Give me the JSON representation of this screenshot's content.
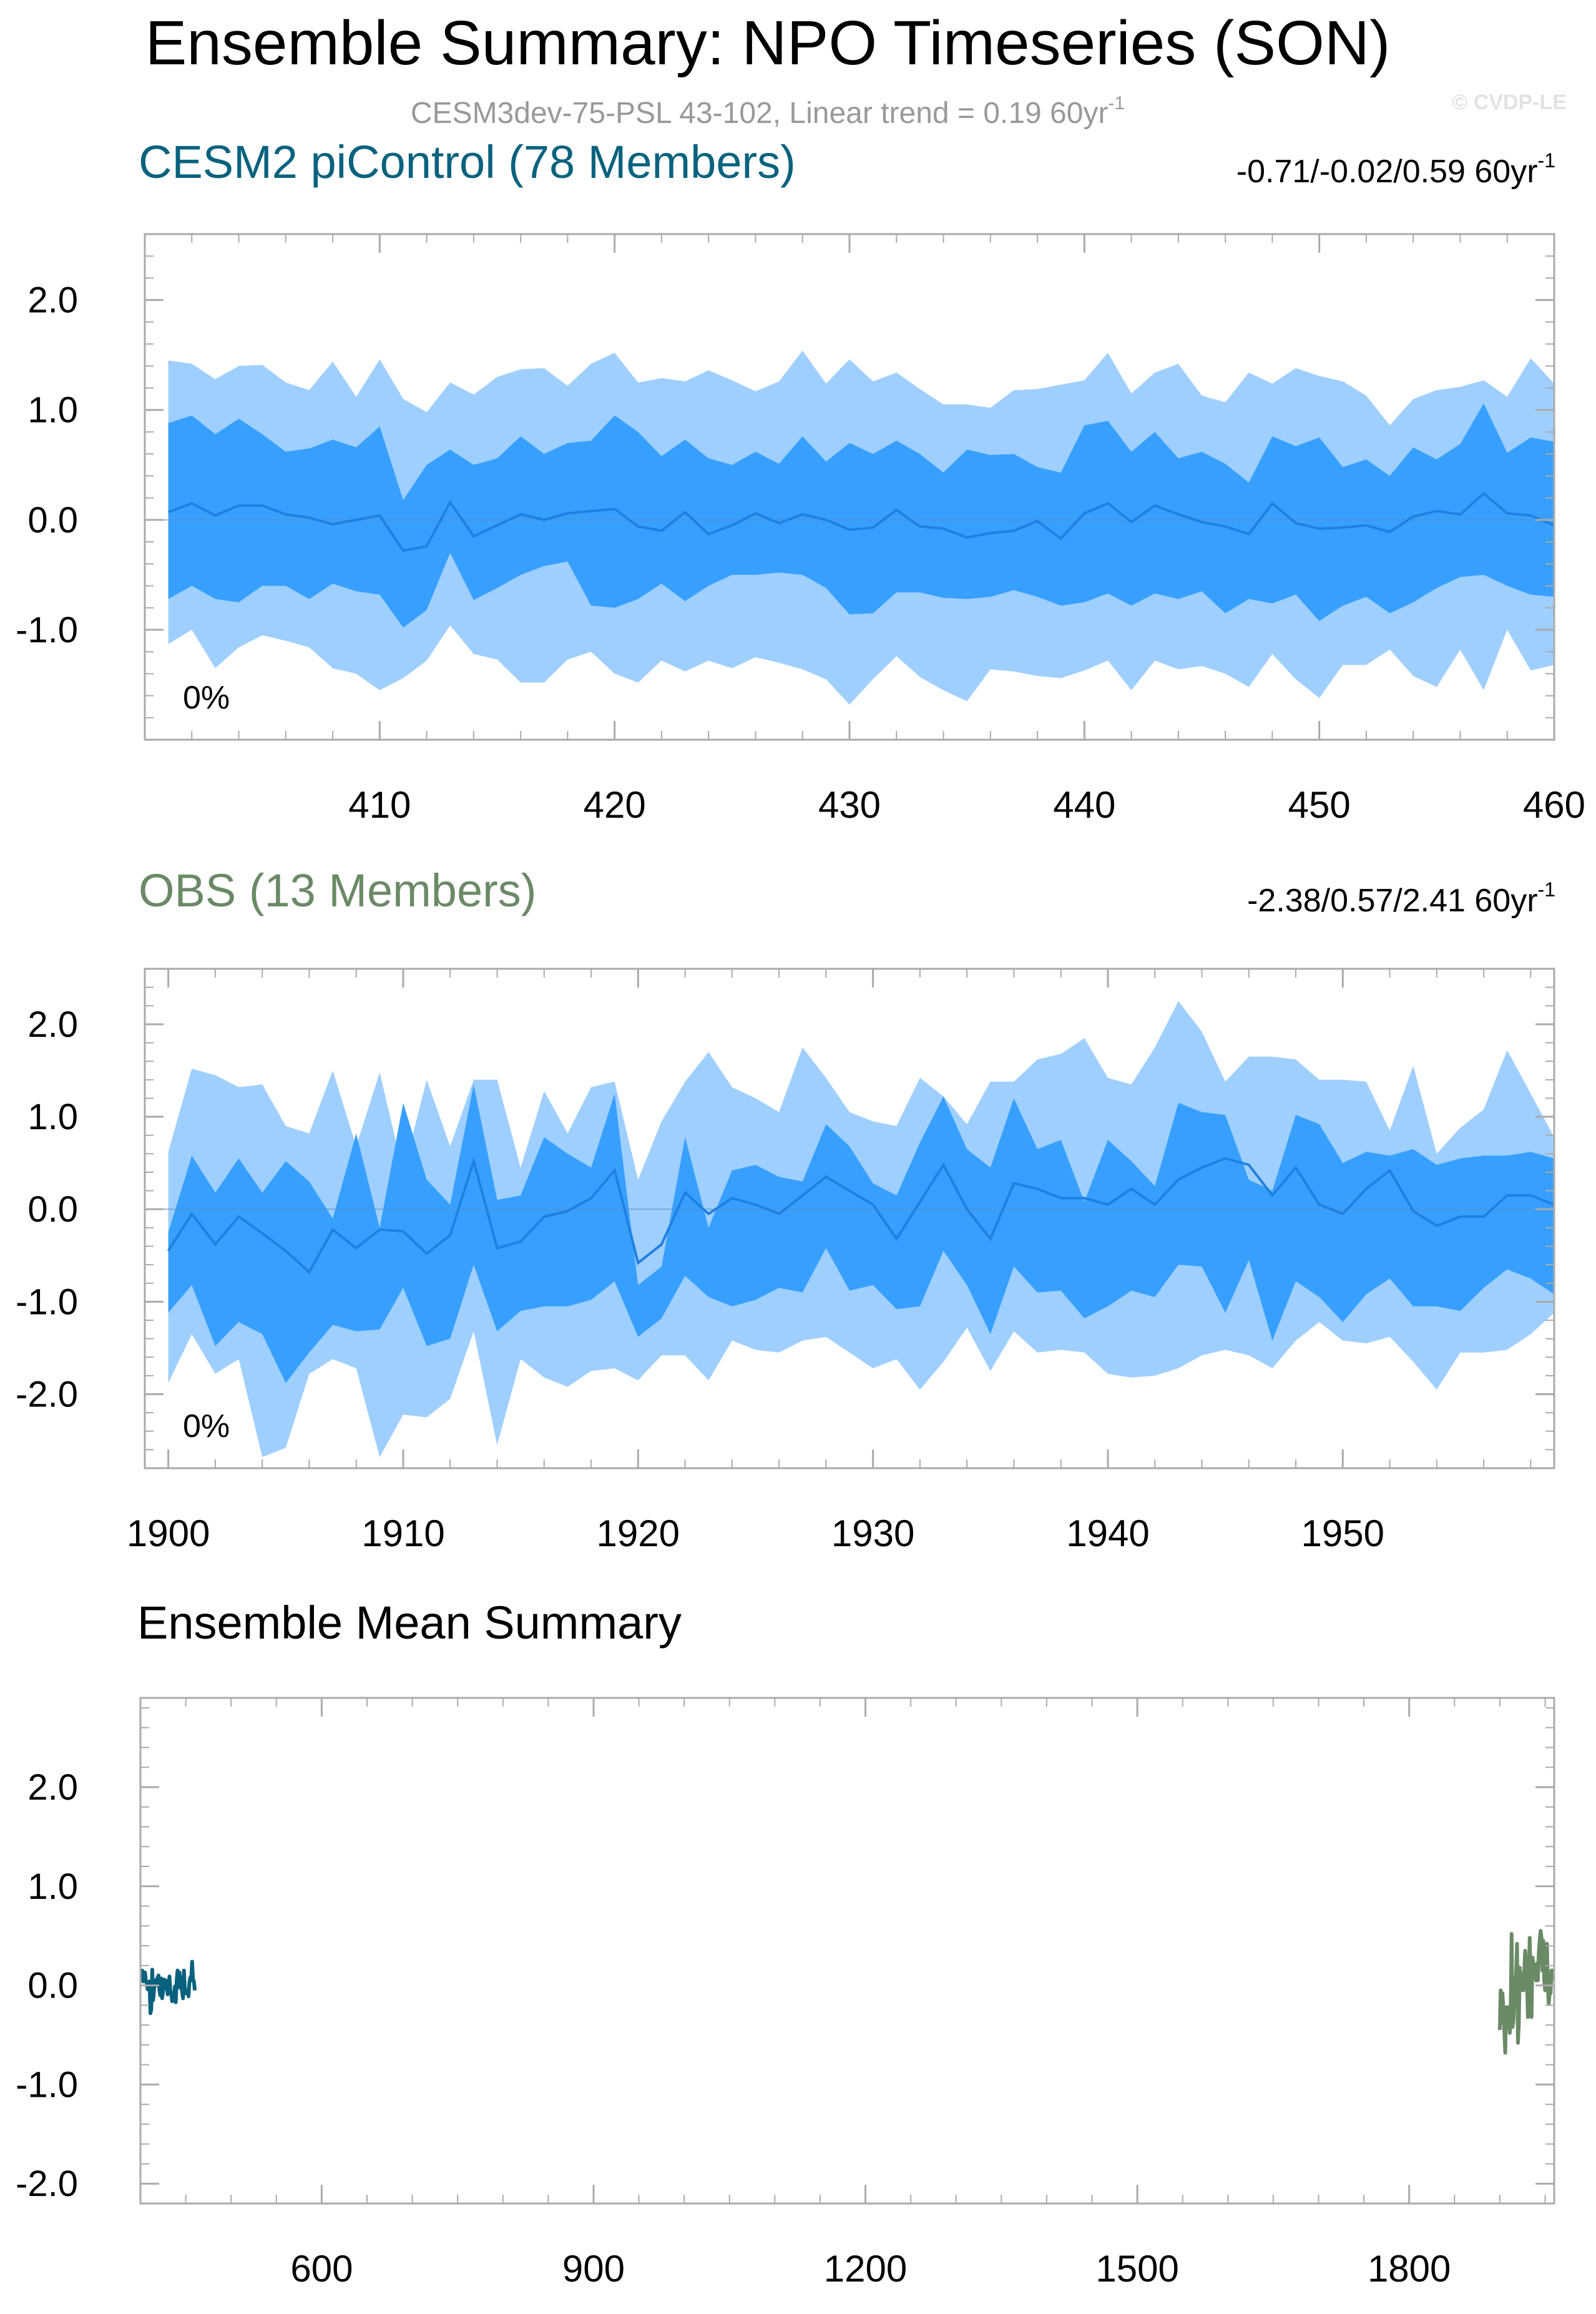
{
  "figure": {
    "title": "Ensemble Summary: NPO Timeseries (SON)",
    "subtitle": "CESM3dev-75-PSL 43-102, Linear trend = 0.19 60yr",
    "subtitle_sup": "-1",
    "copyright": "© CVDP-LE"
  },
  "colors": {
    "band_outer": "#9fcfff",
    "band_inner": "#37a0ff",
    "mean_line": "#1f80e0",
    "cesm": "#08627e",
    "obs": "#6a8a66",
    "frame": "#aaaaaa"
  },
  "chart_data": [
    {
      "type": "area",
      "name": "CESM2 piControl",
      "title": "CESM2 piControl (78 Members)",
      "trend_label": "-0.71/-0.02/0.59 60yr",
      "trend_sup": "-1",
      "percent_label": "0%",
      "x": [
        401,
        402,
        403,
        404,
        405,
        406,
        407,
        408,
        409,
        410,
        411,
        412,
        413,
        414,
        415,
        416,
        417,
        418,
        419,
        420,
        421,
        422,
        423,
        424,
        425,
        426,
        427,
        428,
        429,
        430,
        431,
        432,
        433,
        434,
        435,
        436,
        437,
        438,
        439,
        440,
        441,
        442,
        443,
        444,
        445,
        446,
        447,
        448,
        449,
        450,
        451,
        452,
        453,
        454,
        455,
        456,
        457,
        458,
        459,
        460
      ],
      "p97": [
        1.45,
        1.42,
        1.28,
        1.4,
        1.41,
        1.25,
        1.18,
        1.44,
        1.12,
        1.46,
        1.1,
        0.98,
        1.25,
        1.14,
        1.3,
        1.37,
        1.38,
        1.22,
        1.42,
        1.52,
        1.25,
        1.29,
        1.26,
        1.36,
        1.27,
        1.17,
        1.26,
        1.54,
        1.24,
        1.46,
        1.26,
        1.34,
        1.19,
        1.05,
        1.05,
        1.02,
        1.18,
        1.19,
        1.23,
        1.27,
        1.52,
        1.15,
        1.34,
        1.42,
        1.13,
        1.07,
        1.34,
        1.24,
        1.38,
        1.31,
        1.26,
        1.13,
        0.86,
        1.1,
        1.18,
        1.21,
        1.27,
        1.12,
        1.47,
        1.24
      ],
      "p84": [
        0.88,
        0.95,
        0.78,
        0.92,
        0.78,
        0.62,
        0.65,
        0.73,
        0.66,
        0.85,
        0.18,
        0.5,
        0.64,
        0.5,
        0.56,
        0.76,
        0.6,
        0.7,
        0.72,
        0.95,
        0.8,
        0.58,
        0.73,
        0.56,
        0.5,
        0.62,
        0.51,
        0.76,
        0.53,
        0.7,
        0.6,
        0.72,
        0.6,
        0.43,
        0.64,
        0.59,
        0.6,
        0.48,
        0.43,
        0.86,
        0.9,
        0.62,
        0.8,
        0.56,
        0.62,
        0.51,
        0.34,
        0.76,
        0.67,
        0.75,
        0.48,
        0.55,
        0.4,
        0.66,
        0.55,
        0.69,
        1.06,
        0.61,
        0.75,
        0.71
      ],
      "mean": [
        0.07,
        0.15,
        0.04,
        0.13,
        0.13,
        0.05,
        0.02,
        -0.04,
        0.0,
        0.04,
        -0.28,
        -0.24,
        0.16,
        -0.15,
        -0.05,
        0.05,
        0.0,
        0.06,
        0.08,
        0.1,
        -0.06,
        -0.1,
        0.07,
        -0.13,
        -0.05,
        0.06,
        -0.03,
        0.05,
        0.0,
        -0.09,
        -0.07,
        0.09,
        -0.06,
        -0.08,
        -0.16,
        -0.12,
        -0.1,
        -0.01,
        -0.17,
        0.06,
        0.15,
        -0.02,
        0.13,
        0.05,
        -0.02,
        -0.06,
        -0.13,
        0.15,
        -0.03,
        -0.08,
        -0.07,
        -0.05,
        -0.11,
        0.03,
        0.08,
        0.05,
        0.24,
        0.06,
        0.04,
        -0.05
      ],
      "p16": [
        -0.72,
        -0.6,
        -0.72,
        -0.75,
        -0.6,
        -0.6,
        -0.72,
        -0.58,
        -0.65,
        -0.68,
        -0.98,
        -0.82,
        -0.3,
        -0.73,
        -0.62,
        -0.5,
        -0.42,
        -0.38,
        -0.78,
        -0.8,
        -0.72,
        -0.58,
        -0.74,
        -0.6,
        -0.5,
        -0.5,
        -0.48,
        -0.5,
        -0.62,
        -0.86,
        -0.85,
        -0.66,
        -0.66,
        -0.71,
        -0.72,
        -0.7,
        -0.64,
        -0.7,
        -0.78,
        -0.75,
        -0.67,
        -0.78,
        -0.67,
        -0.72,
        -0.65,
        -0.85,
        -0.72,
        -0.76,
        -0.68,
        -0.92,
        -0.78,
        -0.7,
        -0.85,
        -0.75,
        -0.62,
        -0.52,
        -0.5,
        -0.6,
        -0.68,
        -0.7
      ],
      "p03": [
        -1.13,
        -1.0,
        -1.35,
        -1.16,
        -1.05,
        -1.1,
        -1.16,
        -1.35,
        -1.4,
        -1.55,
        -1.44,
        -1.28,
        -0.96,
        -1.22,
        -1.27,
        -1.48,
        -1.48,
        -1.27,
        -1.2,
        -1.4,
        -1.48,
        -1.28,
        -1.38,
        -1.28,
        -1.35,
        -1.25,
        -1.3,
        -1.36,
        -1.45,
        -1.68,
        -1.45,
        -1.24,
        -1.43,
        -1.55,
        -1.65,
        -1.36,
        -1.38,
        -1.42,
        -1.44,
        -1.37,
        -1.28,
        -1.55,
        -1.28,
        -1.36,
        -1.33,
        -1.4,
        -1.52,
        -1.22,
        -1.45,
        -1.62,
        -1.32,
        -1.32,
        -1.18,
        -1.42,
        -1.52,
        -1.18,
        -1.55,
        -1.0,
        -1.37,
        -1.32
      ],
      "xlim": [
        400,
        460
      ],
      "ylim": [
        -2.0,
        2.6
      ],
      "xticks": [
        410,
        420,
        430,
        440,
        450,
        460
      ],
      "xtick_labels": [
        "410",
        "420",
        "430",
        "440",
        "450",
        "460"
      ],
      "yticks": [
        2.0,
        1.0,
        0.0,
        -1.0
      ],
      "ytick_labels": [
        "2.0",
        "1.0",
        "0.0",
        "-1.0"
      ]
    },
    {
      "type": "area",
      "name": "OBS",
      "title": "OBS (13 Members)",
      "trend_label": "-2.38/0.57/2.41 60yr",
      "trend_sup": "-1",
      "percent_label": "0%",
      "x": [
        1900,
        1901,
        1902,
        1903,
        1904,
        1905,
        1906,
        1907,
        1908,
        1909,
        1910,
        1911,
        1912,
        1913,
        1914,
        1915,
        1916,
        1917,
        1918,
        1919,
        1920,
        1921,
        1922,
        1923,
        1924,
        1925,
        1926,
        1927,
        1928,
        1929,
        1930,
        1931,
        1932,
        1933,
        1934,
        1935,
        1936,
        1937,
        1938,
        1939,
        1940,
        1941,
        1942,
        1943,
        1944,
        1945,
        1946,
        1947,
        1948,
        1949,
        1950,
        1951,
        1952,
        1953,
        1954,
        1955,
        1956,
        1957,
        1958,
        1959
      ],
      "p97": [
        0.62,
        1.52,
        1.45,
        1.32,
        1.35,
        0.9,
        0.82,
        1.5,
        0.68,
        1.48,
        0.4,
        1.4,
        0.68,
        1.4,
        1.4,
        0.45,
        1.28,
        0.82,
        1.32,
        1.38,
        0.32,
        0.95,
        1.38,
        1.7,
        1.32,
        1.2,
        1.05,
        1.75,
        1.42,
        1.05,
        0.95,
        0.9,
        1.42,
        1.22,
        0.92,
        1.38,
        1.38,
        1.62,
        1.68,
        1.85,
        1.42,
        1.35,
        1.75,
        2.25,
        1.92,
        1.38,
        1.65,
        1.65,
        1.62,
        1.4,
        1.4,
        1.38,
        0.85,
        1.55,
        0.6,
        0.88,
        1.08,
        1.72,
        1.25,
        0.78
      ],
      "p84": [
        -0.25,
        0.58,
        0.18,
        0.55,
        0.18,
        0.52,
        0.3,
        -0.1,
        0.82,
        -0.2,
        1.15,
        0.32,
        0.05,
        1.35,
        0.1,
        0.15,
        0.78,
        0.6,
        0.45,
        1.25,
        -0.82,
        -0.62,
        0.78,
        -0.2,
        0.42,
        0.48,
        0.35,
        0.3,
        0.92,
        0.68,
        0.28,
        0.15,
        0.72,
        1.22,
        0.65,
        0.45,
        1.2,
        0.65,
        0.75,
        0.08,
        0.75,
        0.52,
        0.25,
        1.15,
        1.05,
        1.02,
        0.32,
        0.2,
        1.02,
        0.92,
        0.5,
        0.62,
        0.58,
        0.65,
        0.48,
        0.55,
        0.58,
        0.58,
        0.62,
        0.55
      ],
      "mean": [
        -0.45,
        -0.05,
        -0.38,
        -0.08,
        -0.26,
        -0.45,
        -0.68,
        -0.22,
        -0.42,
        -0.22,
        -0.24,
        -0.48,
        -0.28,
        0.52,
        -0.42,
        -0.35,
        -0.08,
        -0.02,
        0.12,
        0.42,
        -0.58,
        -0.38,
        0.18,
        -0.05,
        0.12,
        0.05,
        -0.05,
        0.15,
        0.35,
        0.2,
        0.05,
        -0.32,
        0.08,
        0.48,
        0.0,
        -0.32,
        0.28,
        0.22,
        0.12,
        0.12,
        0.05,
        0.22,
        0.05,
        0.32,
        0.45,
        0.55,
        0.48,
        0.15,
        0.45,
        0.05,
        -0.05,
        0.22,
        0.42,
        -0.02,
        -0.18,
        -0.08,
        -0.08,
        0.15,
        0.15,
        0.05
      ],
      "p16": [
        -1.12,
        -0.82,
        -1.48,
        -1.22,
        -1.35,
        -1.88,
        -1.55,
        -1.25,
        -1.32,
        -1.3,
        -0.85,
        -1.48,
        -1.4,
        -0.6,
        -1.32,
        -1.1,
        -1.05,
        -1.05,
        -0.98,
        -0.78,
        -1.38,
        -1.18,
        -0.72,
        -0.95,
        -1.05,
        -0.98,
        -0.85,
        -0.9,
        -0.42,
        -0.88,
        -0.82,
        -1.08,
        -1.05,
        -0.45,
        -0.82,
        -1.35,
        -0.62,
        -0.9,
        -0.88,
        -1.18,
        -1.05,
        -0.88,
        -0.95,
        -0.6,
        -0.62,
        -1.12,
        -0.55,
        -1.42,
        -0.78,
        -0.95,
        -1.22,
        -0.92,
        -0.75,
        -1.05,
        -1.05,
        -1.1,
        -0.85,
        -0.65,
        -0.75,
        -0.92
      ],
      "p03": [
        -1.88,
        -1.35,
        -1.78,
        -1.62,
        -2.68,
        -2.58,
        -1.78,
        -1.62,
        -1.72,
        -2.68,
        -2.22,
        -2.25,
        -2.05,
        -1.32,
        -2.55,
        -1.62,
        -1.82,
        -1.92,
        -1.75,
        -1.72,
        -1.85,
        -1.58,
        -1.58,
        -1.85,
        -1.42,
        -1.52,
        -1.55,
        -1.42,
        -1.38,
        -1.55,
        -1.72,
        -1.62,
        -1.95,
        -1.65,
        -1.28,
        -1.75,
        -1.32,
        -1.55,
        -1.52,
        -1.55,
        -1.78,
        -1.82,
        -1.8,
        -1.72,
        -1.58,
        -1.52,
        -1.58,
        -1.72,
        -1.42,
        -1.22,
        -1.42,
        -1.45,
        -1.38,
        -1.65,
        -1.95,
        -1.55,
        -1.55,
        -1.52,
        -1.35,
        -1.12
      ],
      "xlim": [
        1899,
        1959
      ],
      "ylim": [
        -2.8,
        2.6
      ],
      "xticks": [
        1900,
        1910,
        1920,
        1930,
        1940,
        1950
      ],
      "xtick_labels": [
        "1900",
        "1910",
        "1920",
        "1930",
        "1940",
        "1950"
      ],
      "yticks": [
        2.0,
        1.0,
        0.0,
        -1.0,
        -2.0
      ],
      "ytick_labels": [
        "2.0",
        "1.0",
        "0.0",
        "-1.0",
        "-2.0"
      ]
    },
    {
      "type": "line",
      "name": "Ensemble Mean",
      "title": "Ensemble Mean Summary",
      "series": [
        {
          "name": "CESM2 piControl",
          "color_key": "cesm",
          "source": 0
        },
        {
          "name": "OBS",
          "color_key": "obs",
          "source": 1
        }
      ],
      "xlim": [
        400,
        1960
      ],
      "ylim": [
        -2.2,
        2.9
      ],
      "xticks": [
        600,
        900,
        1200,
        1500,
        1800
      ],
      "xtick_labels": [
        "600",
        "900",
        "1200",
        "1500",
        "1800"
      ],
      "yticks": [
        2.0,
        1.0,
        0.0,
        -1.0,
        -2.0
      ],
      "ytick_labels": [
        "2.0",
        "1.0",
        "0.0",
        "-1.0",
        "-2.0"
      ]
    }
  ]
}
